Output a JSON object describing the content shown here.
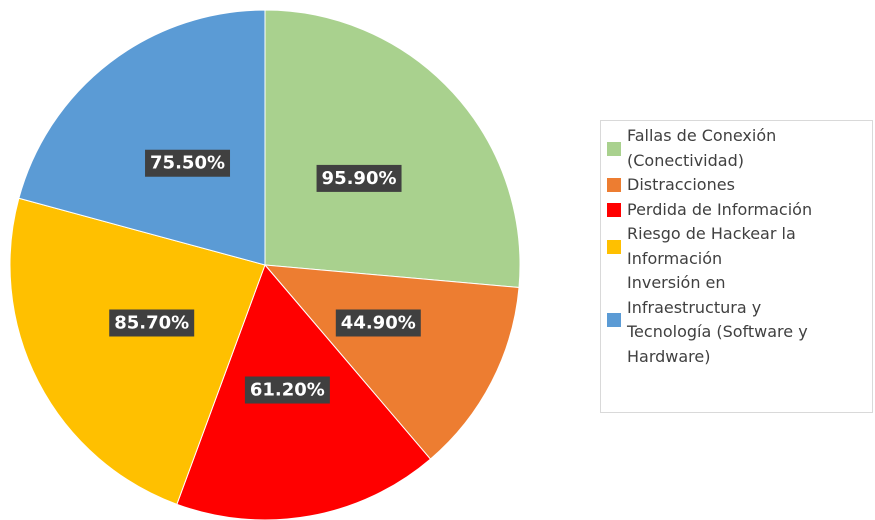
{
  "chart_data": {
    "type": "pie",
    "categories": [
      "Fallas de Conexión (Conectividad)",
      "Distracciones",
      "Perdida de Información",
      "Riesgo de Hackear la Información",
      "Inversión en Infraestructura y Tecnología (Software y Hardware)"
    ],
    "values": [
      95.9,
      44.9,
      61.2,
      85.7,
      75.5
    ],
    "value_labels": [
      "95.90%",
      "44.90%",
      "61.20%",
      "85.70%",
      "75.50%"
    ],
    "colors": [
      "#a9d18e",
      "#ed7d31",
      "#ff0000",
      "#ffc000",
      "#5b9bd5"
    ],
    "legend": "right"
  }
}
